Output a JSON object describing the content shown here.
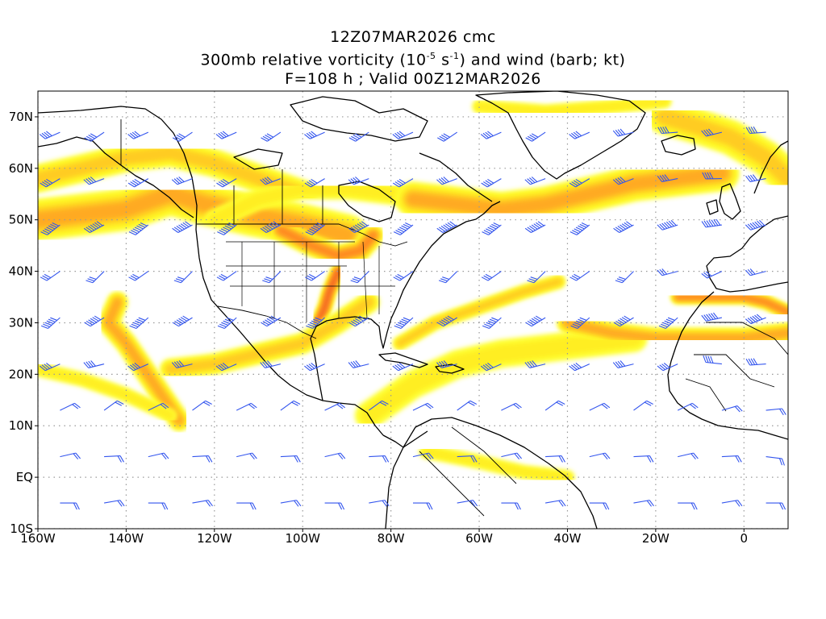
{
  "title": {
    "line1": "12Z07MAR2026 cmc",
    "line2_pre": "300mb relative vorticity (10",
    "line2_exp1": "-5",
    "line2_mid": " s",
    "line2_exp2": "-1",
    "line2_post": ") and wind (barb; kt)",
    "line3": "F=108 h ; Valid 00Z12MAR2026"
  },
  "axes": {
    "lon_range": [
      -160,
      10
    ],
    "lat_range": [
      -10,
      75
    ],
    "lon_ticks": [
      {
        "value": -160,
        "label": "160W"
      },
      {
        "value": -140,
        "label": "140W"
      },
      {
        "value": -120,
        "label": "120W"
      },
      {
        "value": -100,
        "label": "100W"
      },
      {
        "value": -80,
        "label": "80W"
      },
      {
        "value": -60,
        "label": "60W"
      },
      {
        "value": -40,
        "label": "40W"
      },
      {
        "value": -20,
        "label": "20W"
      },
      {
        "value": 0,
        "label": "0"
      }
    ],
    "lat_ticks": [
      {
        "value": 70,
        "label": "70N"
      },
      {
        "value": 60,
        "label": "60N"
      },
      {
        "value": 50,
        "label": "50N"
      },
      {
        "value": 40,
        "label": "40N"
      },
      {
        "value": 30,
        "label": "30N"
      },
      {
        "value": 20,
        "label": "20N"
      },
      {
        "value": 10,
        "label": "10N"
      },
      {
        "value": 0,
        "label": "EQ"
      },
      {
        "value": -10,
        "label": "10S"
      }
    ],
    "grid": "dotted"
  },
  "colors": {
    "vort_low": "#ffff33",
    "vort_mid1": "#ffee22",
    "vort_mid2": "#ffcc22",
    "vort_mid3": "#ffaa22",
    "vort_high1": "#ff8820",
    "vort_high2": "#f06020",
    "vort_max": "#dd3322",
    "barb": "#3355ee",
    "coast": "#000000",
    "grid": "#999999"
  },
  "vorticity_bands": [
    {
      "name": "n-pacific-jet",
      "level": 3,
      "pts": [
        [
          -160,
          50
        ],
        [
          -150,
          51
        ],
        [
          -140,
          52
        ],
        [
          -130,
          55
        ],
        [
          -122,
          53
        ],
        [
          -112,
          51
        ],
        [
          -100,
          49
        ],
        [
          -90,
          47
        ]
      ],
      "width": 6
    },
    {
      "name": "gulf-alaska-arc",
      "level": 2,
      "pts": [
        [
          -160,
          58
        ],
        [
          -150,
          60
        ],
        [
          -140,
          62
        ],
        [
          -130,
          63
        ],
        [
          -120,
          61
        ],
        [
          -110,
          58
        ],
        [
          -100,
          55
        ]
      ],
      "width": 4
    },
    {
      "name": "canada-upper",
      "level": 1,
      "pts": [
        [
          -120,
          50
        ],
        [
          -110,
          54
        ],
        [
          -100,
          56
        ],
        [
          -90,
          56
        ],
        [
          -80,
          55
        ],
        [
          -70,
          54
        ]
      ],
      "width": 3
    },
    {
      "name": "atlantic-north-jet",
      "level": 3,
      "pts": [
        [
          -75,
          54
        ],
        [
          -65,
          53
        ],
        [
          -55,
          52
        ],
        [
          -45,
          53
        ],
        [
          -35,
          55
        ],
        [
          -25,
          57
        ],
        [
          -15,
          58
        ],
        [
          -5,
          59
        ]
      ],
      "width": 5
    },
    {
      "name": "greenland-east",
      "level": 2,
      "pts": [
        [
          -18,
          70
        ],
        [
          -10,
          68
        ],
        [
          -3,
          66
        ],
        [
          5,
          62
        ],
        [
          10,
          58
        ]
      ],
      "width": 5
    },
    {
      "name": "greenland-north",
      "level": 1,
      "pts": [
        [
          -60,
          72
        ],
        [
          -45,
          71
        ],
        [
          -30,
          72
        ],
        [
          -18,
          73
        ]
      ],
      "width": 2
    },
    {
      "name": "great-lakes",
      "level": 4,
      "pts": [
        [
          -105,
          48
        ],
        [
          -98,
          45
        ],
        [
          -92,
          43
        ],
        [
          -87,
          44
        ],
        [
          -84,
          47
        ]
      ],
      "width": 3
    },
    {
      "name": "plains-trough",
      "level": 5,
      "pts": [
        [
          -92,
          40
        ],
        [
          -94,
          36
        ],
        [
          -95,
          33
        ],
        [
          -97,
          29
        ]
      ],
      "width": 2
    },
    {
      "name": "subtropical-jet",
      "level": 2,
      "pts": [
        [
          -130,
          21
        ],
        [
          -120,
          22
        ],
        [
          -110,
          24
        ],
        [
          -100,
          26
        ],
        [
          -92,
          30
        ],
        [
          -85,
          34
        ]
      ],
      "width": 3
    },
    {
      "name": "atlantic-subtropical",
      "level": 2,
      "pts": [
        [
          -78,
          26
        ],
        [
          -70,
          30
        ],
        [
          -60,
          33
        ],
        [
          -50,
          36
        ],
        [
          -42,
          38
        ]
      ],
      "width": 2
    },
    {
      "name": "atlantic-diag",
      "level": 1,
      "pts": [
        [
          -85,
          12
        ],
        [
          -75,
          18
        ],
        [
          -65,
          22
        ],
        [
          -55,
          24
        ],
        [
          -45,
          25
        ],
        [
          -35,
          26
        ],
        [
          -25,
          27
        ]
      ],
      "width": 4
    },
    {
      "name": "africa-jet",
      "level": 3,
      "pts": [
        [
          -40,
          30
        ],
        [
          -30,
          28
        ],
        [
          -20,
          27
        ],
        [
          -10,
          27
        ],
        [
          0,
          27
        ],
        [
          10,
          28
        ]
      ],
      "width": 3
    },
    {
      "name": "atlas-jet",
      "level": 4,
      "pts": [
        [
          -15,
          35
        ],
        [
          -8,
          35
        ],
        [
          0,
          35
        ],
        [
          5,
          34
        ],
        [
          10,
          32
        ]
      ],
      "width": 2
    },
    {
      "name": "pacific-hook",
      "level": 3,
      "pts": [
        [
          -142,
          34
        ],
        [
          -144,
          30
        ],
        [
          -140,
          26
        ],
        [
          -136,
          21
        ],
        [
          -132,
          16
        ],
        [
          -128,
          11
        ]
      ],
      "width": 3
    },
    {
      "name": "pacific-sw",
      "level": 1,
      "pts": [
        [
          -160,
          21
        ],
        [
          -150,
          19
        ],
        [
          -140,
          16
        ],
        [
          -130,
          12
        ]
      ],
      "width": 2
    },
    {
      "name": "eq-atl",
      "level": 1,
      "pts": [
        [
          -72,
          5
        ],
        [
          -60,
          3
        ],
        [
          -50,
          1
        ],
        [
          -40,
          0
        ]
      ],
      "width": 2
    }
  ]
}
